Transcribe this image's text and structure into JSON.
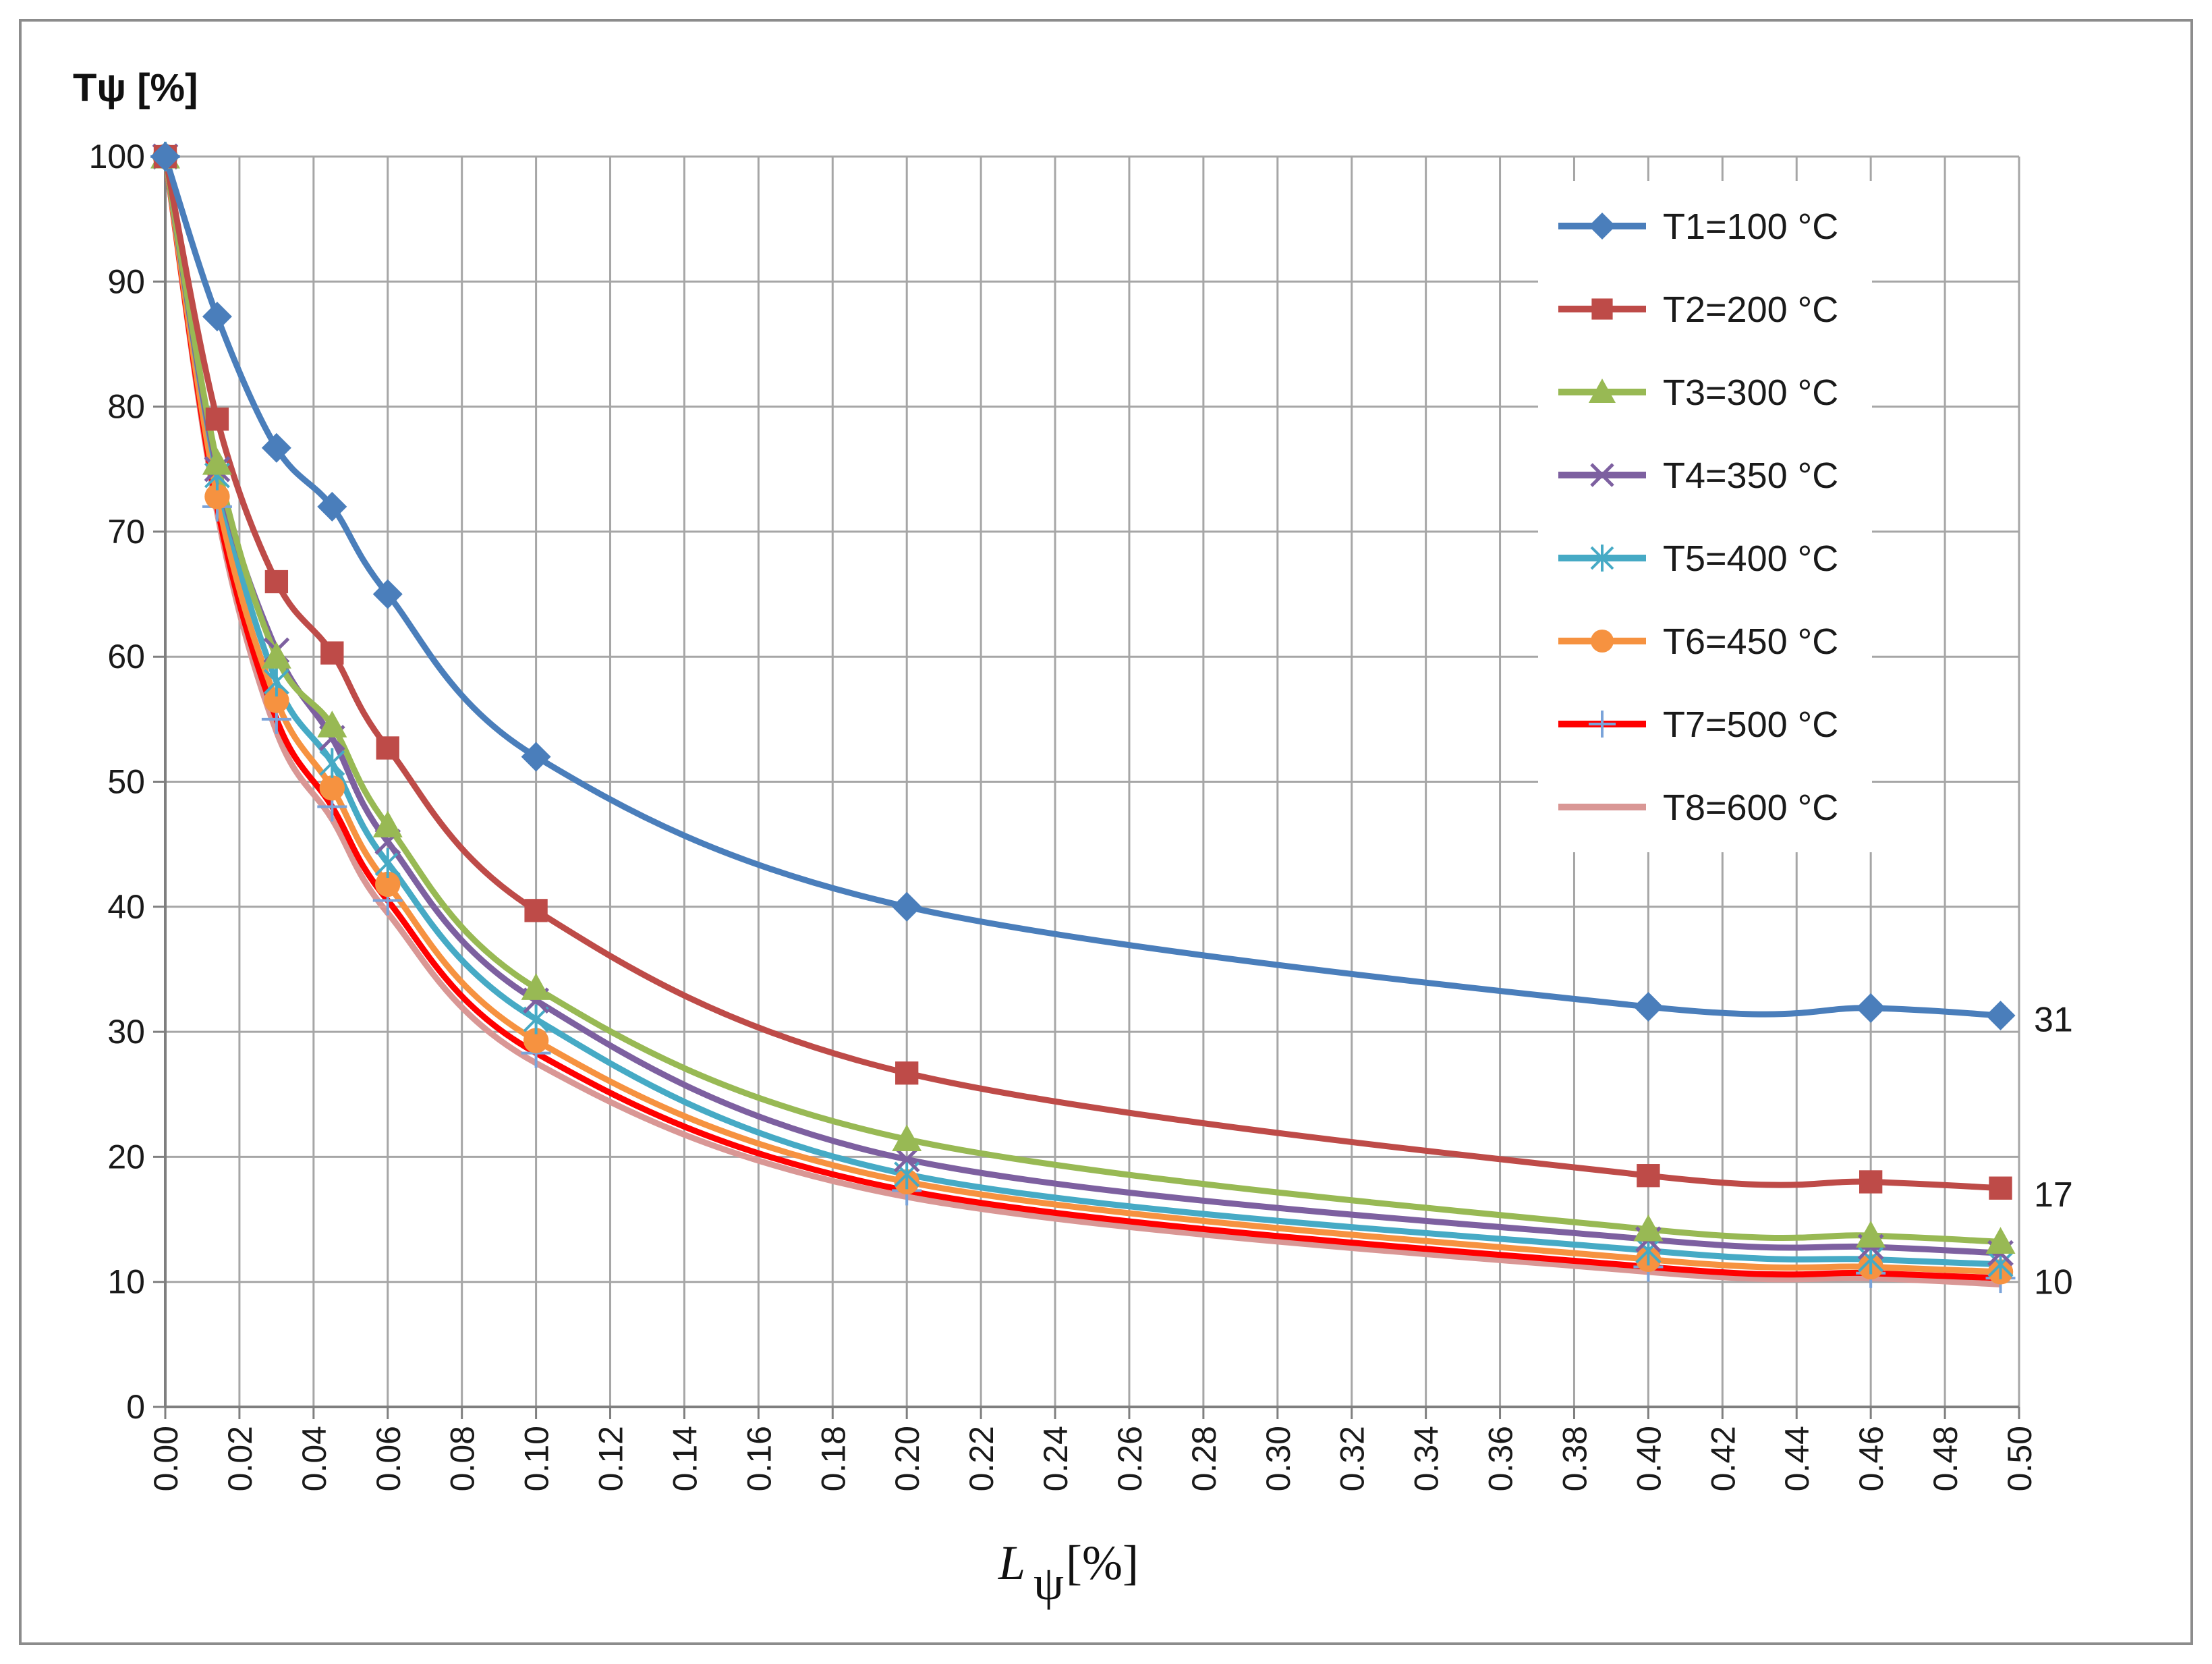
{
  "chart_data": {
    "type": "line",
    "title": "",
    "ylabel": "Tψ [%]",
    "xlabel_main": "L",
    "xlabel_sub": "ψ",
    "xlabel_unit": "[%]",
    "xlim": [
      0,
      0.5
    ],
    "ylim": [
      0,
      100
    ],
    "xticks": [
      "0.00",
      "0.02",
      "0.04",
      "0.06",
      "0.08",
      "0.10",
      "0.12",
      "0.14",
      "0.16",
      "0.18",
      "0.20",
      "0.22",
      "0.24",
      "0.26",
      "0.28",
      "0.30",
      "0.32",
      "0.34",
      "0.36",
      "0.38",
      "0.40",
      "0.42",
      "0.44",
      "0.46",
      "0.48",
      "0.50"
    ],
    "yticks": [
      "0",
      "10",
      "20",
      "30",
      "40",
      "50",
      "60",
      "70",
      "80",
      "90",
      "100"
    ],
    "grid": true,
    "legend_position": "top-right",
    "x": [
      0.0,
      0.014,
      0.03,
      0.045,
      0.06,
      0.1,
      0.2,
      0.4,
      0.46,
      0.495
    ],
    "series": [
      {
        "name": "T1=100 °C",
        "color": "#4a7ebb",
        "marker": "diamond",
        "values": [
          100,
          87.2,
          76.7,
          72.0,
          65.0,
          52.0,
          40.0,
          32.0,
          31.9,
          31.3
        ]
      },
      {
        "name": "T2=200 °C",
        "color": "#be4b48",
        "marker": "square",
        "values": [
          100,
          79.0,
          66.0,
          60.3,
          52.7,
          39.7,
          26.7,
          18.5,
          18.0,
          17.5
        ]
      },
      {
        "name": "T3=300 °C",
        "color": "#98b954",
        "marker": "triangle",
        "values": [
          100,
          75.5,
          60.0,
          54.5,
          46.5,
          33.5,
          21.4,
          14.2,
          13.7,
          13.2
        ]
      },
      {
        "name": "T4=350 °C",
        "color": "#7d60a0",
        "marker": "x",
        "values": [
          100,
          75.0,
          60.5,
          53.5,
          45.2,
          32.5,
          19.8,
          13.4,
          12.8,
          12.3
        ]
      },
      {
        "name": "T5=400 °C",
        "color": "#46aac5",
        "marker": "star",
        "values": [
          100,
          74.5,
          58.0,
          51.5,
          43.5,
          31.0,
          18.6,
          12.5,
          11.8,
          11.4
        ]
      },
      {
        "name": "T6=450 °C",
        "color": "#f69240",
        "marker": "circle",
        "values": [
          100,
          72.8,
          56.5,
          49.5,
          41.8,
          29.3,
          18.0,
          11.8,
          11.2,
          10.8
        ]
      },
      {
        "name": "T7=500 °C",
        "color": "#ff0000",
        "marker": "plus",
        "values": [
          100,
          72.0,
          55.0,
          48.0,
          40.5,
          28.3,
          17.3,
          11.2,
          10.7,
          10.3
        ]
      },
      {
        "name": "T8=600 °C",
        "color": "#d99795",
        "marker": "none",
        "values": [
          100,
          71.5,
          54.0,
          47.0,
          39.5,
          27.5,
          16.8,
          10.8,
          10.3,
          9.8
        ]
      }
    ],
    "annotations": [
      {
        "text": "31",
        "y": 31
      },
      {
        "text": "17",
        "y": 17
      },
      {
        "text": "10",
        "y": 10
      }
    ]
  }
}
